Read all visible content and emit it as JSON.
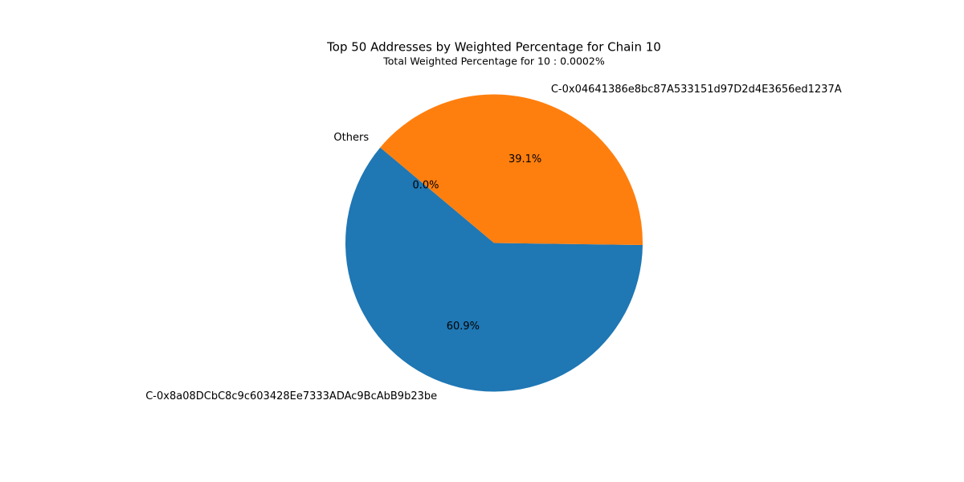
{
  "chart_data": {
    "type": "pie",
    "title": "Top 50 Addresses by Weighted Percentage for Chain 10",
    "subtitle": "Total Weighted Percentage for 10 : 0.0002%",
    "start_angle_deg": 140,
    "counterclock": true,
    "slices": [
      {
        "label": "C-0x8a08DCbC8c9c603428Ee7333ADAc9BcAbB9b23be",
        "value": 60.9,
        "pct_label": "60.9%",
        "color": "#1f77b4"
      },
      {
        "label": "C-0x04641386e8bc87A533151d97D2d4E3656ed1237A",
        "value": 39.1,
        "pct_label": "39.1%",
        "color": "#ff7f0e"
      },
      {
        "label": "Others",
        "value": 0.0,
        "pct_label": "0.0%",
        "color": "#2ca02c"
      }
    ]
  }
}
